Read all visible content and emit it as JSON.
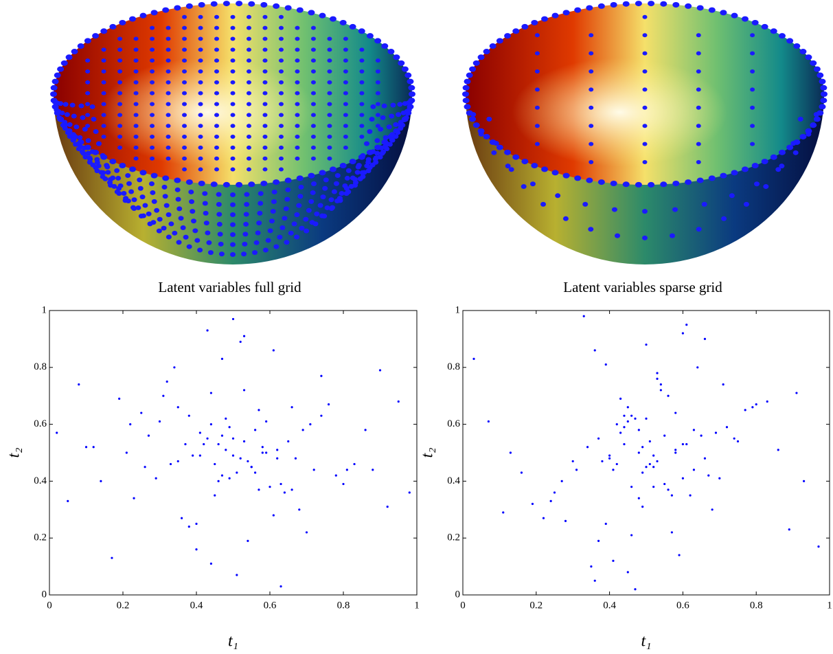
{
  "chart_data": [
    {
      "type": "scatter",
      "title": "Latent variables full grid",
      "x_label": "t₁",
      "y_label": "t₂",
      "color": "#0000ff",
      "xlim": [
        0,
        1
      ],
      "ylim": [
        0,
        1
      ],
      "xticks": [
        0,
        0.2,
        0.4,
        0.6,
        0.8,
        1
      ],
      "yticks": [
        0,
        0.2,
        0.4,
        0.6,
        0.8,
        1
      ],
      "x": [
        0.52,
        0.41,
        0.63,
        0.48,
        0.55,
        0.37,
        0.71,
        0.29,
        0.58,
        0.45,
        0.66,
        0.33,
        0.5,
        0.61,
        0.44,
        0.12,
        0.88,
        0.54,
        0.47,
        0.39,
        0.69,
        0.57,
        0.25,
        0.78,
        0.51,
        0.43,
        0.62,
        0.35,
        0.05,
        0.95,
        0.53,
        0.46,
        0.59,
        0.4,
        0.74,
        0.21,
        0.56,
        0.49,
        0.64,
        0.31,
        0.83,
        0.17,
        0.52,
        0.42,
        0.6,
        0.38,
        0.67,
        0.27,
        0.92,
        0.08,
        0.55,
        0.44,
        0.7,
        0.34,
        0.58,
        0.47,
        0.76,
        0.23,
        0.5,
        0.63,
        0.41,
        0.86,
        0.14,
        0.57,
        0.45,
        0.65,
        0.36,
        0.53,
        0.48,
        0.72,
        0.3,
        0.98,
        0.02,
        0.54,
        0.4,
        0.61,
        0.46,
        0.8,
        0.19,
        0.51,
        0.43,
        0.68,
        0.32,
        0.59,
        0.49,
        0.74,
        0.26,
        0.56,
        0.38,
        0.9,
        0.1,
        0.62,
        0.44,
        0.53,
        0.47,
        0.66,
        0.35,
        0.81,
        0.22,
        0.5
      ],
      "y": [
        0.48,
        0.57,
        0.39,
        0.62,
        0.45,
        0.53,
        0.6,
        0.41,
        0.5,
        0.35,
        0.66,
        0.46,
        0.55,
        0.28,
        0.71,
        0.52,
        0.44,
        0.19,
        0.83,
        0.49,
        0.58,
        0.37,
        0.64,
        0.42,
        0.07,
        0.93,
        0.51,
        0.47,
        0.33,
        0.68,
        0.54,
        0.4,
        0.61,
        0.25,
        0.77,
        0.5,
        0.43,
        0.59,
        0.36,
        0.7,
        0.46,
        0.13,
        0.89,
        0.53,
        0.38,
        0.63,
        0.48,
        0.56,
        0.31,
        0.74,
        0.45,
        0.6,
        0.22,
        0.8,
        0.52,
        0.42,
        0.67,
        0.34,
        0.97,
        0.03,
        0.49,
        0.58,
        0.4,
        0.65,
        0.46,
        0.54,
        0.27,
        0.72,
        0.51,
        0.44,
        0.61,
        0.36,
        0.57,
        0.47,
        0.16,
        0.86,
        0.53,
        0.39,
        0.69,
        0.43,
        0.55,
        0.3,
        0.75,
        0.5,
        0.41,
        0.63,
        0.45,
        0.58,
        0.24,
        0.79,
        0.52,
        0.48,
        0.11,
        0.91,
        0.56,
        0.37,
        0.66,
        0.44,
        0.6,
        0.49
      ]
    },
    {
      "type": "scatter",
      "title": "Latent variables sparse grid",
      "x_label": "t₁",
      "y_label": "t₂",
      "color": "#0000ff",
      "xlim": [
        0,
        1
      ],
      "ylim": [
        0,
        1
      ],
      "xticks": [
        0,
        0.2,
        0.4,
        0.6,
        0.8,
        1
      ],
      "yticks": [
        0,
        0.2,
        0.4,
        0.6,
        0.8,
        1
      ],
      "x": [
        0.48,
        0.57,
        0.39,
        0.62,
        0.45,
        0.53,
        0.6,
        0.41,
        0.5,
        0.35,
        0.66,
        0.46,
        0.55,
        0.28,
        0.71,
        0.52,
        0.44,
        0.19,
        0.83,
        0.49,
        0.58,
        0.37,
        0.64,
        0.42,
        0.07,
        0.93,
        0.51,
        0.47,
        0.33,
        0.68,
        0.54,
        0.4,
        0.61,
        0.25,
        0.77,
        0.5,
        0.43,
        0.59,
        0.36,
        0.7,
        0.46,
        0.13,
        0.89,
        0.53,
        0.38,
        0.63,
        0.48,
        0.56,
        0.31,
        0.74,
        0.45,
        0.6,
        0.22,
        0.8,
        0.52,
        0.42,
        0.67,
        0.34,
        0.97,
        0.03,
        0.49,
        0.58,
        0.4,
        0.65,
        0.46,
        0.54,
        0.27,
        0.72,
        0.51,
        0.44,
        0.61,
        0.36,
        0.57,
        0.47,
        0.16,
        0.86,
        0.53,
        0.39,
        0.69,
        0.43,
        0.55,
        0.3,
        0.75,
        0.5,
        0.41,
        0.63,
        0.45,
        0.58,
        0.24,
        0.79,
        0.52,
        0.48,
        0.11,
        0.91,
        0.56,
        0.37,
        0.66,
        0.44,
        0.6,
        0.49
      ],
      "y": [
        0.5,
        0.22,
        0.81,
        0.35,
        0.66,
        0.47,
        0.53,
        0.44,
        0.62,
        0.1,
        0.9,
        0.38,
        0.56,
        0.26,
        0.74,
        0.49,
        0.59,
        0.32,
        0.68,
        0.43,
        0.51,
        0.19,
        0.8,
        0.46,
        0.61,
        0.4,
        0.54,
        0.02,
        0.98,
        0.3,
        0.72,
        0.48,
        0.53,
        0.36,
        0.65,
        0.45,
        0.57,
        0.14,
        0.86,
        0.41,
        0.63,
        0.5,
        0.23,
        0.76,
        0.47,
        0.58,
        0.34,
        0.7,
        0.44,
        0.55,
        0.08,
        0.92,
        0.27,
        0.67,
        0.38,
        0.6,
        0.42,
        0.52,
        0.17,
        0.83,
        0.31,
        0.64,
        0.49,
        0.56,
        0.21,
        0.74,
        0.4,
        0.59,
        0.46,
        0.53,
        0.95,
        0.05,
        0.35,
        0.62,
        0.43,
        0.51,
        0.78,
        0.25,
        0.57,
        0.69,
        0.39,
        0.47,
        0.54,
        0.88,
        0.12,
        0.44,
        0.61,
        0.5,
        0.33,
        0.66,
        0.45,
        0.58,
        0.29,
        0.71,
        0.37,
        0.55,
        0.48,
        0.63,
        0.41,
        0.52
      ]
    }
  ]
}
